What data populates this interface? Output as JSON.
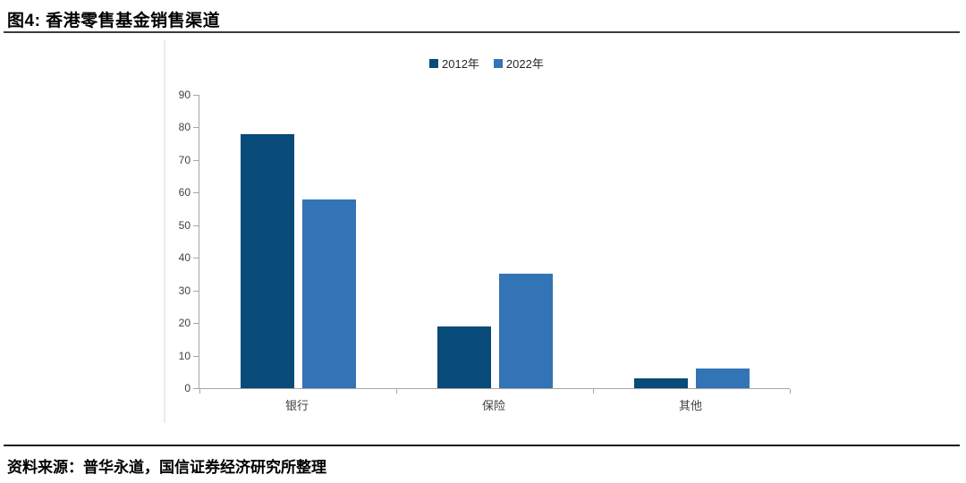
{
  "header": {
    "title": "图4: 香港零售基金销售渠道"
  },
  "footer": {
    "source": "资料来源：普华永道，国信证券经济研究所整理"
  },
  "chart_data": {
    "type": "bar",
    "title": "图4: 香港零售基金销售渠道",
    "categories": [
      "银行",
      "保险",
      "其他"
    ],
    "series": [
      {
        "name": "2012年",
        "color": "#084a78",
        "values": [
          78,
          19,
          3
        ]
      },
      {
        "name": "2022年",
        "color": "#3274b5",
        "values": [
          58,
          35,
          6
        ]
      }
    ],
    "xlabel": "",
    "ylabel": "",
    "ylim": [
      0,
      90
    ],
    "ytick_step": 10,
    "grid": false,
    "legend_position": "top-center",
    "axis_color": "#a6a6a6"
  }
}
